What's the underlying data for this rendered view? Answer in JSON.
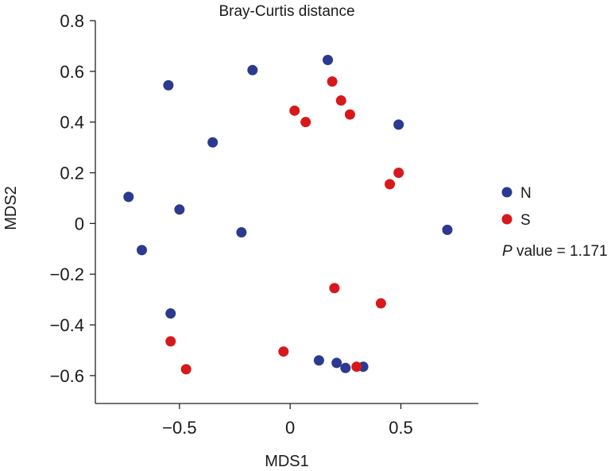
{
  "chart_data": {
    "type": "scatter",
    "title": "Bray-Curtis distance",
    "xlabel": "MDS1",
    "ylabel": "MDS2",
    "xlim": [
      -0.88,
      0.85
    ],
    "ylim": [
      -0.71,
      0.8
    ],
    "xticks": [
      -0.5,
      0,
      0.5
    ],
    "xtick_labels": [
      "−0.5",
      "0",
      "0.5"
    ],
    "yticks": [
      0.8,
      0.6,
      0.4,
      0.2,
      0,
      -0.2,
      -0.4,
      -0.6
    ],
    "ytick_labels": [
      "0.8",
      "0.6",
      "0.4",
      "0.2",
      "0",
      "−0.2",
      "−0.4",
      "−0.6"
    ],
    "grid": false,
    "legend_position": "right",
    "series": [
      {
        "name": "N",
        "color": "#2b3990",
        "points": [
          [
            0.17,
            0.645
          ],
          [
            -0.17,
            0.605
          ],
          [
            -0.55,
            0.545
          ],
          [
            0.49,
            0.39
          ],
          [
            -0.35,
            0.32
          ],
          [
            -0.73,
            0.105
          ],
          [
            -0.5,
            0.055
          ],
          [
            -0.22,
            -0.035
          ],
          [
            0.71,
            -0.025
          ],
          [
            -0.67,
            -0.105
          ],
          [
            -0.54,
            -0.355
          ],
          [
            0.13,
            -0.54
          ],
          [
            0.21,
            -0.55
          ],
          [
            0.25,
            -0.57
          ],
          [
            0.33,
            -0.565
          ]
        ]
      },
      {
        "name": "S",
        "color": "#d7191c",
        "points": [
          [
            0.19,
            0.56
          ],
          [
            0.23,
            0.485
          ],
          [
            0.02,
            0.445
          ],
          [
            0.07,
            0.4
          ],
          [
            0.27,
            0.43
          ],
          [
            0.49,
            0.2
          ],
          [
            0.45,
            0.155
          ],
          [
            0.2,
            -0.255
          ],
          [
            0.41,
            -0.315
          ],
          [
            -0.54,
            -0.465
          ],
          [
            -0.03,
            -0.505
          ],
          [
            -0.47,
            -0.575
          ],
          [
            0.3,
            -0.565
          ]
        ]
      }
    ],
    "annotation": {
      "italic": "P",
      "text": " value = 1.171"
    }
  }
}
